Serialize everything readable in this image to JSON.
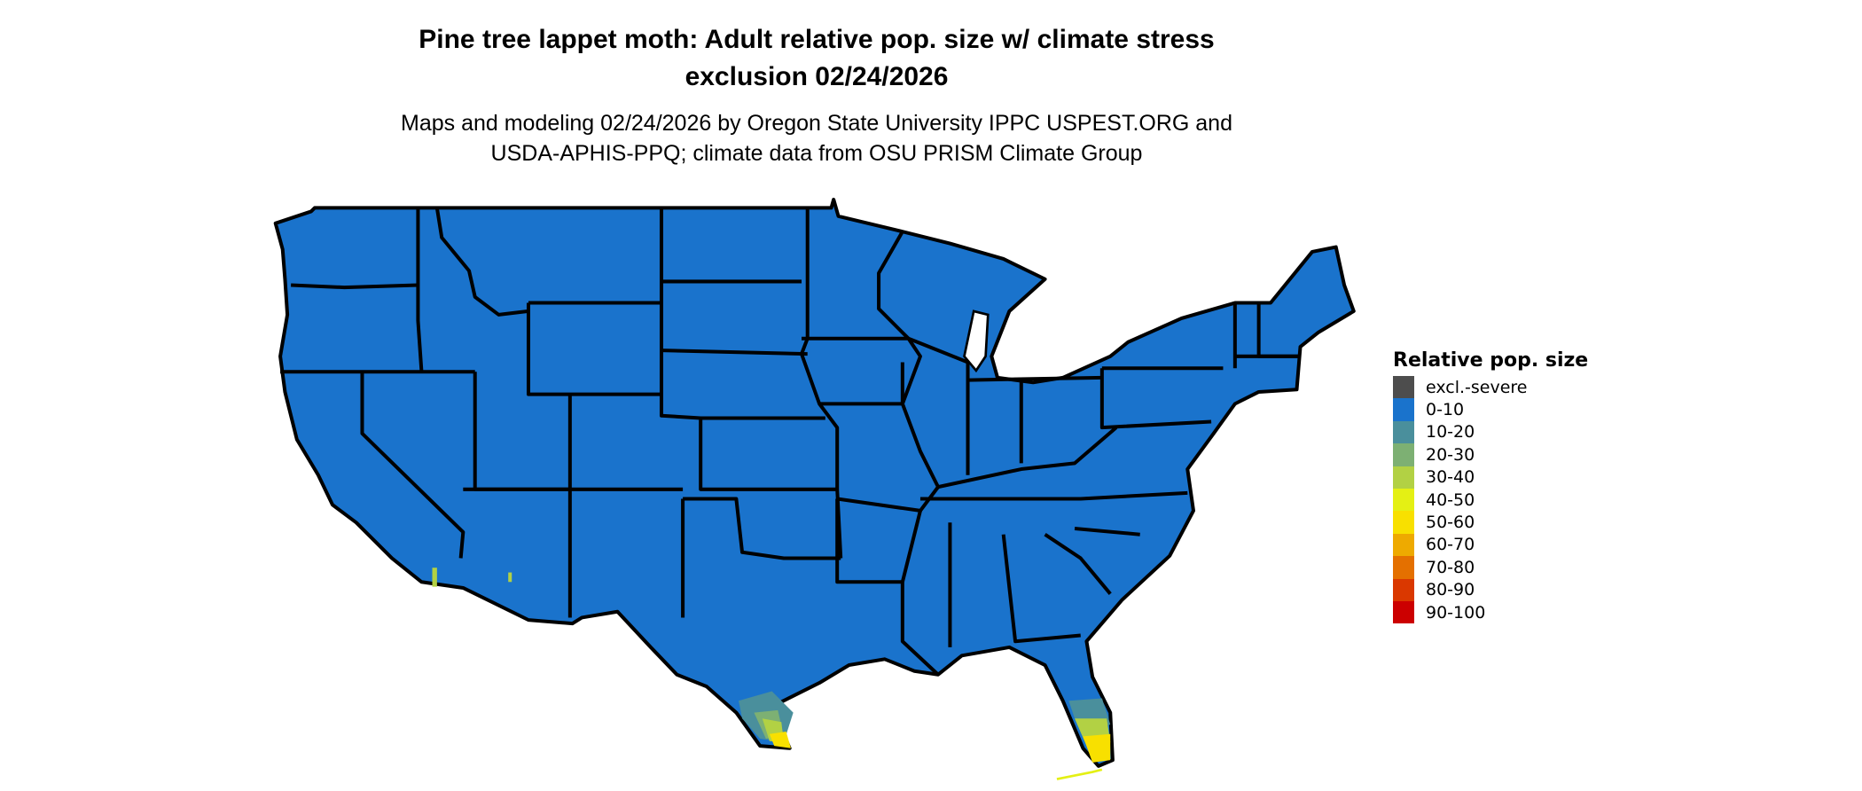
{
  "title": {
    "line1": "Pine tree lappet moth: Adult relative pop. size w/ climate stress",
    "line2": "exclusion 02/24/2026"
  },
  "subtitle": {
    "line1": "Maps and modeling 02/24/2026 by Oregon State University IPPC USPEST.ORG and",
    "line2": "USDA-APHIS-PPQ; climate data from OSU PRISM Climate Group"
  },
  "map": {
    "region": "Contiguous United States",
    "dominant_class": "0-10",
    "state_border_color": "#000000"
  },
  "legend": {
    "title": "Relative pop. size",
    "items": [
      {
        "label": "excl.-severe",
        "color": "#4d4d4d"
      },
      {
        "label": "0-10",
        "color": "#1a73cc"
      },
      {
        "label": "10-20",
        "color": "#4a8f9c"
      },
      {
        "label": "20-30",
        "color": "#7db073"
      },
      {
        "label": "30-40",
        "color": "#b2d144"
      },
      {
        "label": "40-50",
        "color": "#e4f014"
      },
      {
        "label": "50-60",
        "color": "#f8e000"
      },
      {
        "label": "60-70",
        "color": "#eeaa00"
      },
      {
        "label": "70-80",
        "color": "#e47000"
      },
      {
        "label": "80-90",
        "color": "#da3800"
      },
      {
        "label": "90-100",
        "color": "#cc0000"
      }
    ]
  }
}
